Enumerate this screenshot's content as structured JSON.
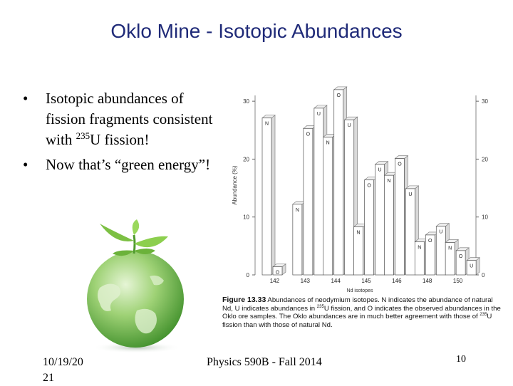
{
  "slide": {
    "title": "Oklo Mine - Isotopic Abundances",
    "bullets": [
      {
        "before": "Isotopic abundances of fission fragments consistent with ",
        "sup": "235",
        "after": "U fission!"
      },
      {
        "text": "Now that’s “green energy”!"
      }
    ],
    "footer": {
      "date_line1": "10/19/20",
      "date_line2": "21",
      "course": "Physics 590B - Fall 2014",
      "page": "10"
    }
  },
  "chart_data": {
    "type": "bar",
    "ylabel": "Abundance (%)",
    "xlabel": "Nd isotopes",
    "yticks": [
      0,
      10,
      20,
      30
    ],
    "ylim": [
      0,
      31
    ],
    "categories": [
      "142",
      "143",
      "144",
      "145",
      "146",
      "148",
      "150"
    ],
    "series": [
      {
        "name": "N",
        "values": [
          27.1,
          12.2,
          23.8,
          8.3,
          17.2,
          5.7,
          5.6
        ]
      },
      {
        "name": "U",
        "values": [
          0,
          28.8,
          26.8,
          19.1,
          14.9,
          8.4,
          2.5
        ]
      },
      {
        "name": "O",
        "values": [
          1.4,
          25.3,
          32.0,
          16.4,
          20.1,
          6.9,
          4.2
        ]
      }
    ],
    "caption": {
      "label": "Figure 13.33",
      "text1": "Abundances of neodymium isotopes. N indicates the abundance of natural Nd, U indicates abundances in ",
      "sup1": "235",
      "text2": "U fission, and O indicates the observed abundances in the Oklo ore samples. The Oklo abundances are in much better agreement with those of ",
      "sup2": "235",
      "text3": "U fission than with those of natural Nd."
    }
  },
  "icons": {
    "globe": "green-earth-with-sprout-icon"
  },
  "colors": {
    "title": "#1f2a78",
    "globe": "#5aa63a",
    "leaf": "#7cc043"
  }
}
